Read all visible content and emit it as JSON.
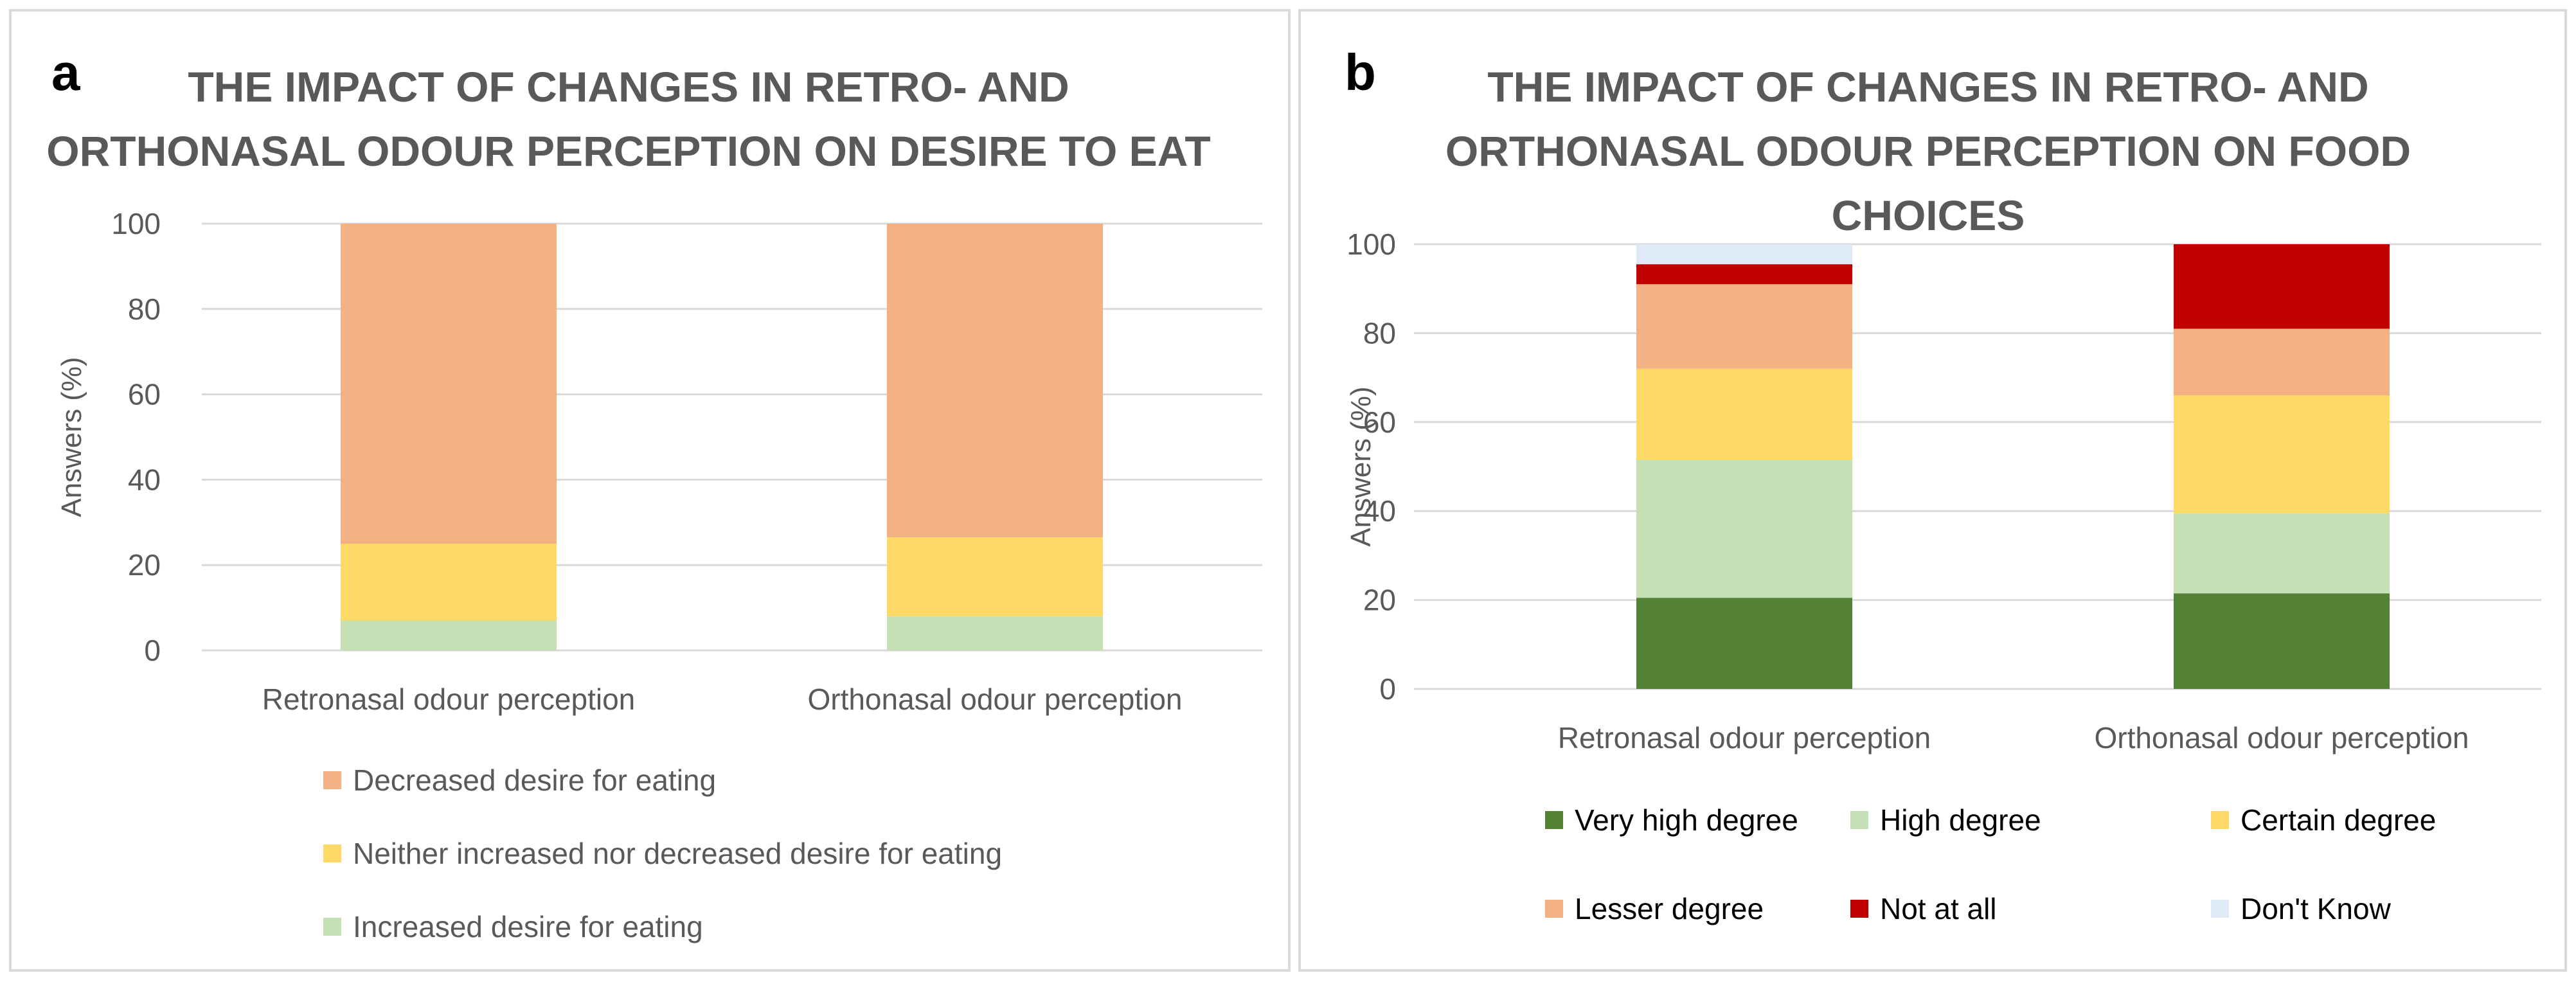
{
  "chart_data": [
    {
      "panel": "a",
      "type": "bar",
      "stacked": true,
      "title_lines": [
        "THE IMPACT OF CHANGES IN RETRO- AND",
        "ORTHONASAL ODOUR PERCEPTION ON DESIRE TO EAT"
      ],
      "ylabel": "Answers (%)",
      "xlabel": "",
      "ylim": [
        0,
        100
      ],
      "yticks": [
        "0",
        "20",
        "40",
        "60",
        "80",
        "100"
      ],
      "grid": true,
      "legend_position": "bottom",
      "categories": [
        "Retronasal odour perception",
        "Orthonasal odour perception"
      ],
      "series": [
        {
          "name": "Increased desire for eating",
          "color": "#c5e0b4",
          "values": [
            7,
            8
          ]
        },
        {
          "name": "Neither increased nor decreased desire for eating",
          "color": "#ffd966",
          "values": [
            18,
            18.5
          ]
        },
        {
          "name": "Decreased desire for eating",
          "color": "#f4b183",
          "values": [
            75,
            73.5
          ]
        }
      ],
      "legend_order": [
        "Decreased desire for eating",
        "Neither increased nor decreased desire for eating",
        "Increased desire for eating"
      ]
    },
    {
      "panel": "b",
      "type": "bar",
      "stacked": true,
      "title_lines": [
        "THE IMPACT OF CHANGES IN RETRO- AND",
        "ORTHONASAL ODOUR PERCEPTION ON FOOD",
        "CHOICES"
      ],
      "ylabel": "Answers (%)",
      "xlabel": "",
      "ylim": [
        0,
        100
      ],
      "yticks": [
        "0",
        "20",
        "40",
        "60",
        "80",
        "100"
      ],
      "grid": true,
      "legend_position": "bottom",
      "categories": [
        "Retronasal odour perception",
        "Orthonasal odour perception"
      ],
      "series": [
        {
          "name": "Very high degree",
          "color": "#548235",
          "values": [
            20.5,
            21.5
          ]
        },
        {
          "name": "High degree",
          "color": "#c5e0b4",
          "values": [
            31,
            18
          ]
        },
        {
          "name": "Certain degree",
          "color": "#ffd966",
          "values": [
            20.5,
            26.5
          ]
        },
        {
          "name": "Lesser degree",
          "color": "#f4b183",
          "values": [
            19,
            15
          ]
        },
        {
          "name": "Not at all",
          "color": "#c00000",
          "values": [
            4.5,
            19
          ]
        },
        {
          "name": "Don't Know",
          "color": "#deebf7",
          "values": [
            4.5,
            0
          ]
        }
      ],
      "legend_order": [
        "Very high degree",
        "High degree",
        "Certain degree",
        "Lesser degree",
        "Not at all",
        "Don't Know"
      ]
    }
  ],
  "panels": {
    "a": {
      "letter": "a"
    },
    "b": {
      "letter": "b"
    }
  }
}
